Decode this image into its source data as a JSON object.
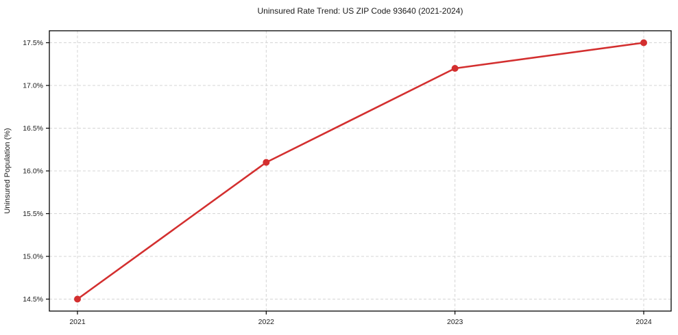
{
  "figure": {
    "background": "#ffffff"
  },
  "chart_data": {
    "type": "line",
    "title": "Uninsured Rate Trend: US ZIP Code 93640 (2021-2024)",
    "xlabel": "",
    "ylabel": "Uninsured Population (%)",
    "categories": [
      "2021",
      "2022",
      "2023",
      "2024"
    ],
    "series": [
      {
        "name": "Uninsured Population (%)",
        "values": [
          14.5,
          16.1,
          17.2,
          17.5
        ],
        "color": "#d32f2f",
        "marker": "circle",
        "line_width": 2.6,
        "marker_radius": 5
      }
    ],
    "yticks": [
      14.5,
      15.0,
      15.5,
      16.0,
      16.5,
      17.0,
      17.5
    ],
    "ytick_labels": [
      "14.5%",
      "15.0%",
      "15.5%",
      "16.0%",
      "16.5%",
      "17.0%",
      "17.5%"
    ],
    "ylim": [
      14.36,
      17.64
    ],
    "grid": true,
    "grid_line_style": "dashed",
    "grid_color": "#d4d4d4",
    "axis_color": "#000000",
    "text_color": "#1a1a1a",
    "plot_background": "#ffffff",
    "legend": "none"
  }
}
